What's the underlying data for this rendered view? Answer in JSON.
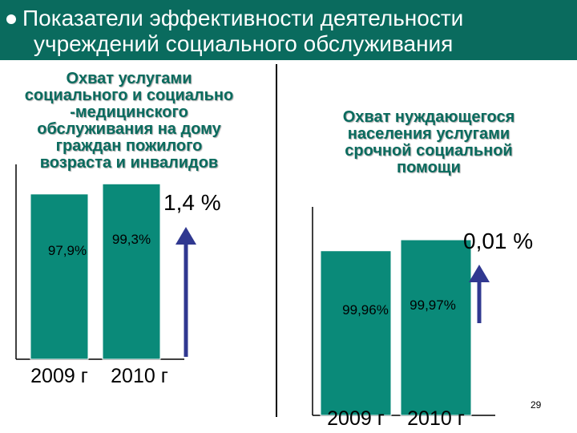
{
  "header": {
    "line1": "Показатели эффективности деятельности",
    "line2": "учреждений социального обслуживания"
  },
  "slide_number": "29",
  "chart_data": [
    {
      "type": "bar",
      "title": "Охват услугами социального и социально -медицинского обслуживания на дому граждан пожилого возраста и инвалидов",
      "title_lines": [
        "Охват услугами",
        "социального и социально",
        "-медицинского",
        "обслуживания на дому",
        "граждан пожилого",
        "возраста и инвалидов"
      ],
      "categories": [
        "2009 г",
        "2010 г"
      ],
      "values": [
        97.9,
        99.3
      ],
      "value_labels": [
        "97,9%",
        "99,3%"
      ],
      "ylim": [
        75,
        102
      ],
      "growth_label": "1,4 %",
      "bar_color": "#0a8a79",
      "arrow_color": "#303890",
      "grid": false
    },
    {
      "type": "bar",
      "title": "Охват нуждающегося населения услугами срочной социальной помощи",
      "title_lines": [
        "Охват нуждающегося",
        "населения услугами",
        "срочной социальной",
        "помощи"
      ],
      "categories": [
        "2009 г",
        "2010 г"
      ],
      "values": [
        99.96,
        99.97
      ],
      "value_labels": [
        "99,96%",
        "99,97%"
      ],
      "ylim": [
        99.81,
        100.0
      ],
      "growth_label": "0,01 %",
      "bar_color": "#0a8a79",
      "arrow_color": "#303890",
      "grid": false
    }
  ]
}
